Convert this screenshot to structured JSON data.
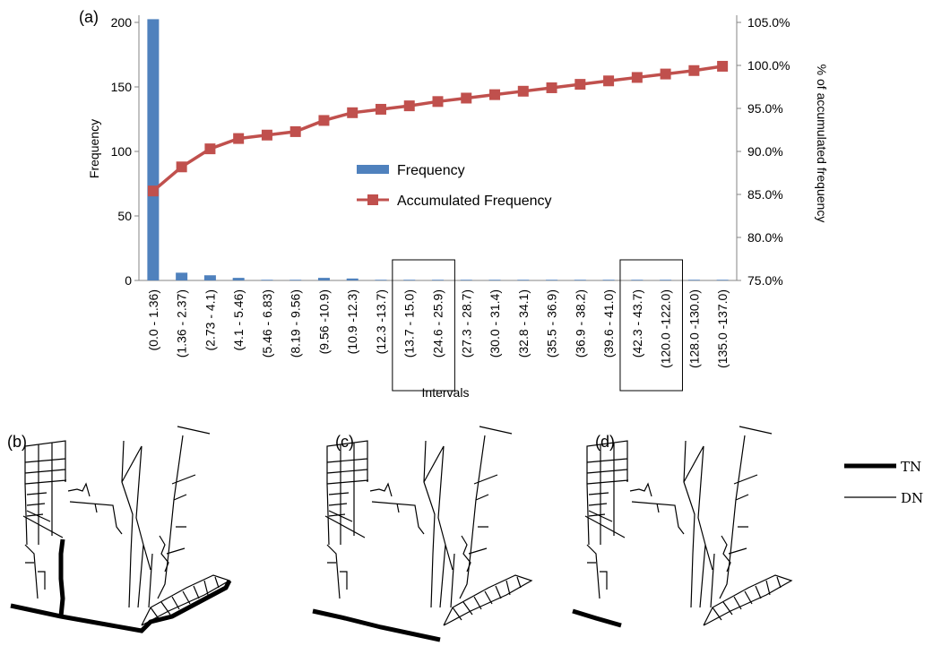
{
  "panel_labels": {
    "a": "(a)",
    "b": "(b)",
    "c": "(c)",
    "d": "(d)"
  },
  "chart_data": {
    "type": "bar",
    "xlabel": "Intervals",
    "ylabel_left": "Frequency",
    "ylabel_right": "% of accumulated frequency",
    "ylim_left": [
      0,
      200
    ],
    "yticks_left": [
      "0",
      "50",
      "100",
      "150",
      "200"
    ],
    "ylim_right": [
      75,
      105
    ],
    "yticks_right": [
      "75.0%",
      "80.0%",
      "85.0%",
      "90.0%",
      "95.0%",
      "100.0%",
      "105.0%"
    ],
    "categories": [
      "(0.0 - 1.36)",
      "(1.36 - 2.37)",
      "(2.73 - 4.1)",
      "(4.1 - 5.46)",
      "(5.46 - 6.83)",
      "(8.19 - 9.56)",
      "(9.56 -10.9)",
      "(10.9 -12.3)",
      "(12.3 -13.7)",
      "(13.7 - 15.0)",
      "(24.6 - 25.9)",
      "(27.3 - 28.7)",
      "(30.0 - 31.4)",
      "(32.8 - 34.1)",
      "(35.5 - 36.9)",
      "(36.9 - 38.2)",
      "(39.6 - 41.0)",
      "(42.3 - 43.7)",
      "(120.0 -122.0)",
      "(128.0 -130.0)",
      "(135.0 -137.0)"
    ],
    "series": [
      {
        "name": "Frequency",
        "type": "bar",
        "axis": "left",
        "color": "#4f81bd",
        "values": [
          204,
          6,
          4,
          2,
          0.5,
          0.5,
          2,
          1.5,
          0.5,
          0.5,
          0.5,
          0.5,
          0.5,
          0.5,
          0.5,
          0.5,
          0.5,
          0.5,
          0.5,
          0.5,
          0.5
        ]
      },
      {
        "name": "Accumulated Frequency",
        "type": "line",
        "axis": "right",
        "color": "#c0504d",
        "values": [
          85.4,
          88.2,
          90.3,
          91.5,
          91.9,
          92.3,
          93.6,
          94.5,
          94.9,
          95.3,
          95.8,
          96.2,
          96.6,
          97.0,
          97.4,
          97.8,
          98.2,
          98.6,
          99.0,
          99.4,
          99.9
        ]
      }
    ],
    "highlighted_ranges": [
      [
        9,
        10
      ],
      [
        17,
        18
      ]
    ],
    "legend": "center",
    "grid": false
  },
  "network_legend": {
    "tn": {
      "label": "TN",
      "color": "#000000"
    },
    "dn": {
      "label": "DN",
      "color": "#000000"
    }
  }
}
